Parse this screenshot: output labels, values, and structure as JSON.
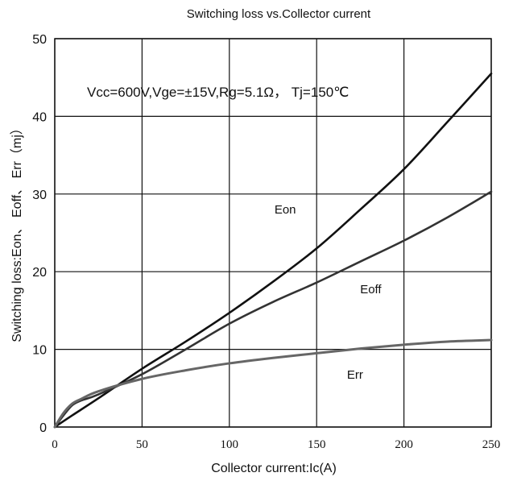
{
  "chart_data": {
    "type": "line",
    "title": "Switching loss vs.Collector current",
    "xlabel": "Collector current:Ic(A)",
    "ylabel": "Switching loss:Eon、 Eoff、 Err（mj）",
    "annotation": "Vcc=600V,Vge=±15V,Rg=5.1Ω， Tj=150℃",
    "xlim": [
      0,
      250
    ],
    "ylim": [
      0,
      50
    ],
    "xticks": [
      0,
      50,
      100,
      150,
      200,
      250
    ],
    "yticks": [
      0,
      10,
      20,
      30,
      40,
      50
    ],
    "grid": true,
    "series": [
      {
        "name": "Eon",
        "color": "#111111",
        "x": [
          0,
          10,
          25,
          50,
          75,
          100,
          125,
          150,
          175,
          200,
          225,
          250
        ],
        "y": [
          0,
          1.5,
          3.7,
          7.5,
          11,
          14.7,
          18.7,
          23,
          28,
          33.2,
          39.3,
          45.5
        ]
      },
      {
        "name": "Eoff",
        "color": "#333333",
        "x": [
          0,
          5,
          10,
          15,
          25,
          50,
          75,
          100,
          125,
          150,
          175,
          200,
          225,
          250
        ],
        "y": [
          0,
          1.5,
          2.8,
          3.4,
          4.2,
          6.8,
          10,
          13.3,
          16.1,
          18.6,
          21.3,
          24,
          27,
          30.3
        ]
      },
      {
        "name": "Err",
        "color": "#666666",
        "x": [
          0,
          5,
          10,
          15,
          25,
          50,
          75,
          100,
          125,
          150,
          175,
          200,
          225,
          250
        ],
        "y": [
          0,
          1.8,
          3.0,
          3.6,
          4.6,
          6.2,
          7.3,
          8.2,
          8.9,
          9.5,
          10.1,
          10.6,
          11.0,
          11.2
        ]
      }
    ],
    "series_label_positions": [
      {
        "name": "Eon",
        "x": 132,
        "y": 27.5
      },
      {
        "name": "Eoff",
        "x": 181,
        "y": 17.2
      },
      {
        "name": "Err",
        "x": 172,
        "y": 6.2
      }
    ]
  }
}
